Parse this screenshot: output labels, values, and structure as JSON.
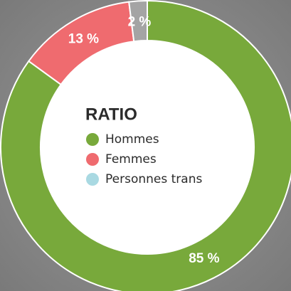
{
  "chart_data": {
    "type": "donut",
    "title": "RATIO",
    "categories": [
      "Hommes",
      "Femmes",
      "Personnes trans"
    ],
    "values": [
      85,
      13,
      2
    ],
    "value_labels": [
      "85 %",
      "13 %",
      "2 %"
    ],
    "colors": [
      "#78a93b",
      "#ef6b6f",
      "#a4a4a4"
    ],
    "legend_colors": [
      "#78a93b",
      "#ef6b6f",
      "#a9d9e2"
    ]
  }
}
